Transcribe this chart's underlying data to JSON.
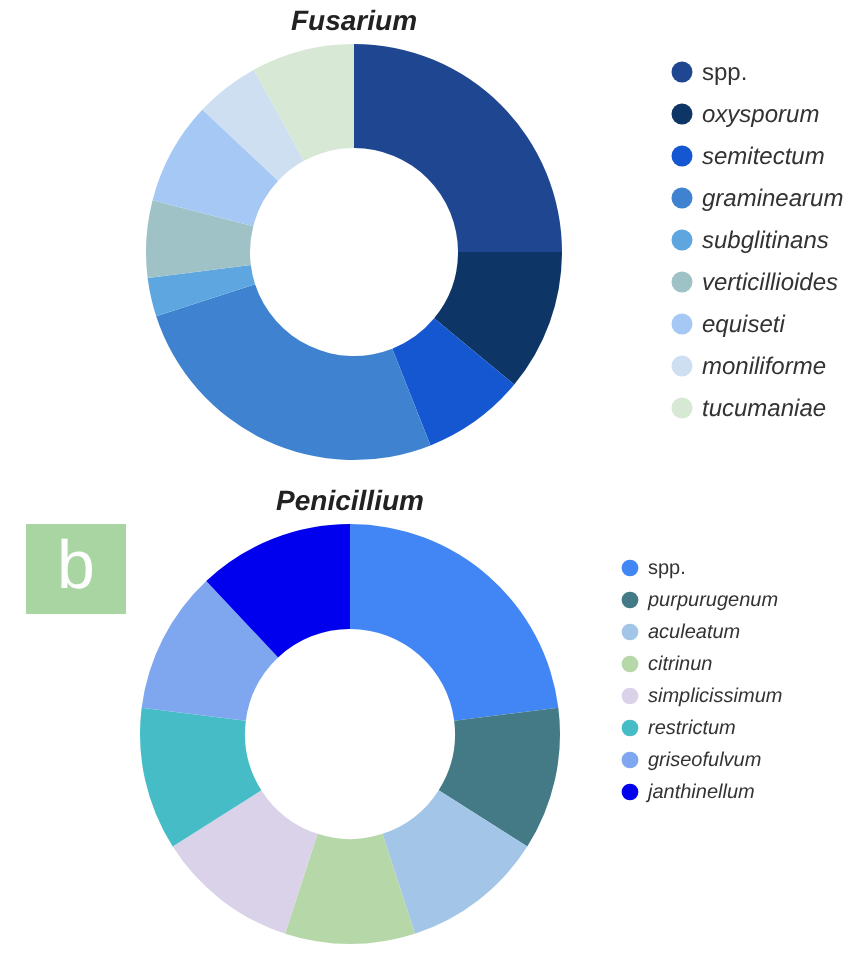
{
  "chart_data": [
    {
      "type": "donut",
      "title": "Fusarium",
      "legend": "right",
      "categories": [
        "spp.",
        "oxysporum",
        "semitectum",
        "graminearum",
        "subglitinans",
        "verticillioides",
        "equiseti",
        "moniliforme",
        "tucumaniae"
      ],
      "values": [
        25,
        11,
        8,
        26,
        3,
        6,
        8,
        5,
        8
      ],
      "colors": [
        "#1f4690",
        "#0d3566",
        "#1457d1",
        "#3f83d0",
        "#5ea6e0",
        "#9fc2c6",
        "#a6c8f5",
        "#cfdff2",
        "#d7e8d5"
      ]
    },
    {
      "type": "donut",
      "title": "Penicillium",
      "legend": "right",
      "annotations": [
        "b"
      ],
      "categories": [
        "spp.",
        "purpurugenum",
        "aculeatum",
        "citrinun",
        "simplicissimum",
        "restrictum",
        "griseofulvum",
        "janthinellum"
      ],
      "values": [
        23,
        11,
        11,
        10,
        11,
        11,
        11,
        12
      ],
      "colors": [
        "#4285f4",
        "#437a86",
        "#a3c6e8",
        "#b6d7a8",
        "#d9d2e9",
        "#46bdc6",
        "#7ea7f0",
        "#0000ee"
      ]
    }
  ]
}
